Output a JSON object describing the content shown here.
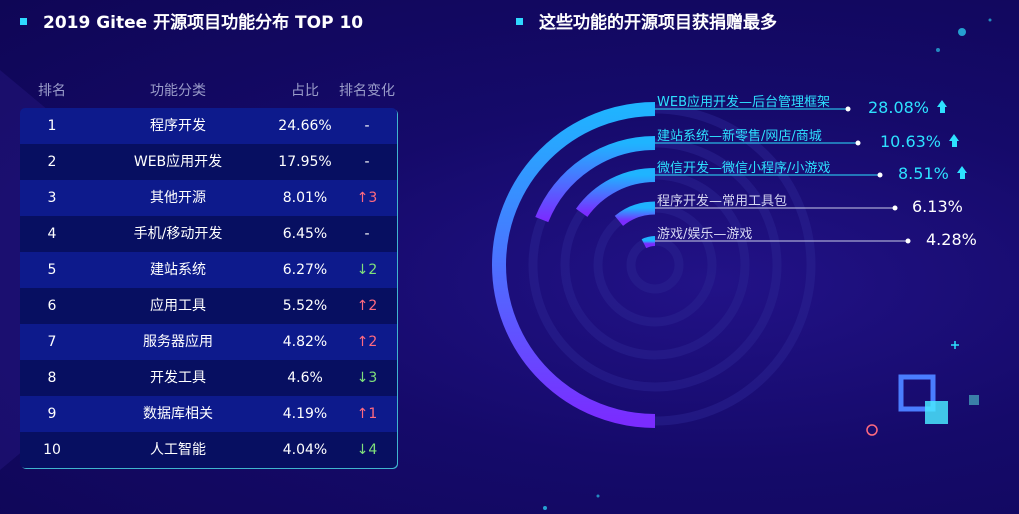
{
  "left_panel": {
    "title": "2019 Gitee 开源项目功能分布 TOP 10",
    "headers": {
      "rank": "排名",
      "category": "功能分类",
      "ratio": "占比",
      "change": "排名变化"
    },
    "rows": [
      {
        "rank": "1",
        "category": "程序开发",
        "ratio": "24.66%",
        "change": "-"
      },
      {
        "rank": "2",
        "category": "WEB应用开发",
        "ratio": "17.95%",
        "change": "-"
      },
      {
        "rank": "3",
        "category": "其他开源",
        "ratio": "8.01%",
        "change": "↑3"
      },
      {
        "rank": "4",
        "category": "手机/移动开发",
        "ratio": "6.45%",
        "change": "-"
      },
      {
        "rank": "5",
        "category": "建站系统",
        "ratio": "6.27%",
        "change": "↓2"
      },
      {
        "rank": "6",
        "category": "应用工具",
        "ratio": "5.52%",
        "change": "↑2"
      },
      {
        "rank": "7",
        "category": "服务器应用",
        "ratio": "4.82%",
        "change": "↑2"
      },
      {
        "rank": "8",
        "category": "开发工具",
        "ratio": "4.6%",
        "change": "↓3"
      },
      {
        "rank": "9",
        "category": "数据库相关",
        "ratio": "4.19%",
        "change": "↑1"
      },
      {
        "rank": "10",
        "category": "人工智能",
        "ratio": "4.04%",
        "change": "↓4"
      }
    ]
  },
  "right_panel": {
    "title": "这些功能的开源项目获捐赠最多",
    "items": [
      {
        "label": "WEB应用开发—后台管理框架",
        "value": "28.08%",
        "pct": 28.08,
        "trend": "up",
        "highlight": true
      },
      {
        "label": "建站系统—新零售/网店/商城",
        "value": "10.63%",
        "pct": 10.63,
        "trend": "up",
        "highlight": true
      },
      {
        "label": "微信开发—微信小程序/小游戏",
        "value": "8.51%",
        "pct": 8.51,
        "trend": "up",
        "highlight": true
      },
      {
        "label": "程序开发—常用工具包",
        "value": "6.13%",
        "pct": 6.13,
        "trend": "",
        "highlight": false
      },
      {
        "label": "游戏/娱乐—游戏",
        "value": "4.28%",
        "pct": 4.28,
        "trend": "",
        "highlight": false
      }
    ]
  },
  "colors": {
    "accent_cyan": "#2de1ff",
    "up": "#ff6a7f",
    "down": "#7fe07b",
    "arc_start": "#1fb4ff",
    "arc_end": "#7a2cff",
    "track": "#2a2290"
  }
}
